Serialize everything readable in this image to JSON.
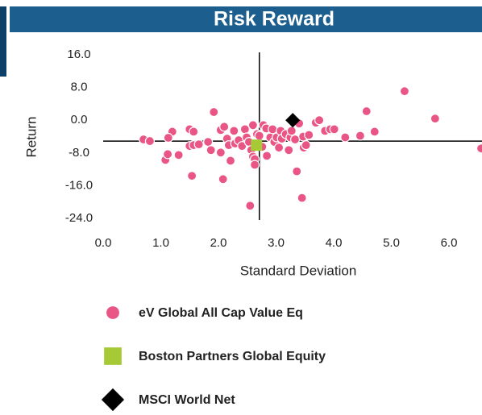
{
  "chart_data": {
    "type": "scatter",
    "title": "Risk Reward",
    "xlabel": "Standard Deviation",
    "ylabel": "Return",
    "xlim": [
      0,
      6.6
    ],
    "ylim": [
      -24,
      16
    ],
    "xticks": [
      {
        "value": 0,
        "label": "0.0"
      },
      {
        "value": 1,
        "label": "1.0"
      },
      {
        "value": 2,
        "label": "2.0"
      },
      {
        "value": 3,
        "label": "3.0"
      },
      {
        "value": 4,
        "label": "4.0"
      },
      {
        "value": 5,
        "label": "5.0"
      },
      {
        "value": 6,
        "label": "6.0"
      }
    ],
    "yticks": [
      {
        "value": 16,
        "label": "16.0"
      },
      {
        "value": 8,
        "label": "8.0"
      },
      {
        "value": 0,
        "label": "0.0"
      },
      {
        "value": -8,
        "label": "-8.0"
      },
      {
        "value": -16,
        "label": "-16.0"
      },
      {
        "value": -24,
        "label": "-24.0"
      }
    ],
    "reference_lines": {
      "x": 2.71,
      "y": -5.1
    },
    "series": [
      {
        "name": "eV Global All Cap Value Eq",
        "color": "#e95585",
        "marker": "circle",
        "x": [
          0.7,
          0.81,
          1.08,
          1.12,
          1.2,
          1.13,
          1.31,
          1.5,
          1.57,
          1.5,
          1.57,
          1.66,
          1.54,
          1.82,
          1.87,
          1.92,
          2.04,
          2.04,
          2.1,
          2.15,
          2.18,
          2.21,
          2.08,
          2.27,
          2.29,
          2.35,
          2.41,
          2.46,
          2.49,
          2.53,
          2.57,
          2.6,
          2.63,
          2.63,
          2.55,
          2.6,
          2.67,
          2.71,
          2.76,
          2.78,
          2.83,
          2.84,
          2.9,
          2.94,
          2.97,
          3.01,
          3.05,
          3.08,
          3.1,
          3.17,
          3.22,
          3.25,
          3.27,
          3.33,
          3.36,
          3.4,
          3.45,
          3.47,
          3.48,
          3.52,
          3.57,
          3.69,
          3.75,
          3.85,
          3.94,
          4.01,
          4.2,
          4.46,
          4.57,
          4.71,
          5.23,
          5.76,
          6.56
        ],
        "values": [
          -4.7,
          -5.1,
          -9.7,
          -8.3,
          -2.8,
          -4.3,
          -8.5,
          -2.2,
          -2.8,
          -6.3,
          -6.1,
          -5.9,
          -13.6,
          -5.3,
          -7.3,
          2.0,
          -7.9,
          -2.4,
          -1.6,
          -4.5,
          -6.1,
          -9.9,
          -14.4,
          -2.6,
          -5.7,
          -4.9,
          -6.3,
          -2.2,
          -4.2,
          -5.3,
          -7.3,
          -8.9,
          -9.5,
          -10.9,
          -20.9,
          -1.2,
          -3.4,
          -3.8,
          -6.5,
          -1.2,
          -2.0,
          -8.7,
          -4.2,
          -2.2,
          -5.3,
          -4.2,
          -6.7,
          -2.6,
          -4.5,
          -3.4,
          -7.3,
          -4.2,
          -2.6,
          -4.7,
          -12.5,
          -0.8,
          -19.0,
          -4.0,
          -6.7,
          -6.1,
          -3.6,
          -0.6,
          0,
          -2.6,
          -2.2,
          -2.2,
          -4.2,
          -3.8,
          2.2,
          -2.8,
          7.1,
          0.4,
          -6.9
        ]
      },
      {
        "name": "Boston Partners Global Equity",
        "color": "#a6c936",
        "marker": "square",
        "x": [
          2.66
        ],
        "values": [
          -6.1
        ]
      },
      {
        "name": "MSCI World Net",
        "color": "#000000",
        "marker": "diamond",
        "x": [
          3.29
        ],
        "values": [
          0.0
        ]
      }
    ]
  }
}
